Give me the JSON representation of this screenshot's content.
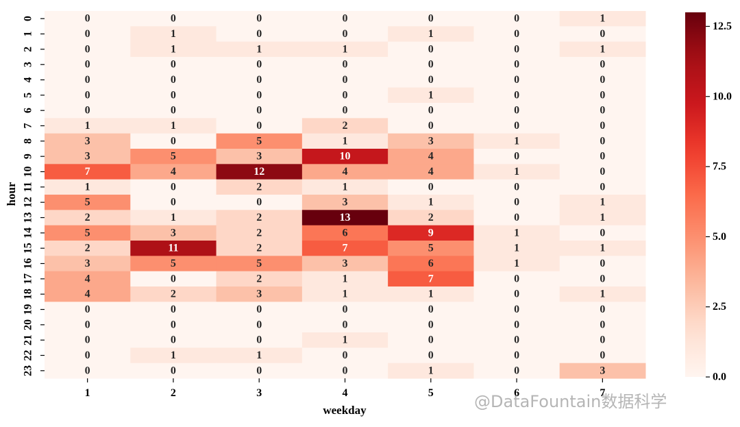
{
  "chart_data": {
    "type": "heatmap",
    "xlabel": "weekday",
    "ylabel": "hour",
    "x_categories": [
      "1",
      "2",
      "3",
      "4",
      "5",
      "6",
      "7"
    ],
    "y_categories": [
      "0",
      "1",
      "2",
      "3",
      "4",
      "5",
      "6",
      "7",
      "8",
      "9",
      "10",
      "11",
      "12",
      "13",
      "14",
      "15",
      "16",
      "17",
      "18",
      "19",
      "20",
      "21",
      "22",
      "23"
    ],
    "values": [
      [
        0,
        0,
        0,
        0,
        0,
        0,
        1
      ],
      [
        0,
        1,
        0,
        0,
        1,
        0,
        0
      ],
      [
        0,
        1,
        1,
        1,
        0,
        0,
        1
      ],
      [
        0,
        0,
        0,
        0,
        0,
        0,
        0
      ],
      [
        0,
        0,
        0,
        0,
        0,
        0,
        0
      ],
      [
        0,
        0,
        0,
        0,
        1,
        0,
        0
      ],
      [
        0,
        0,
        0,
        0,
        0,
        0,
        0
      ],
      [
        1,
        1,
        0,
        2,
        0,
        0,
        0
      ],
      [
        3,
        0,
        5,
        1,
        3,
        1,
        0
      ],
      [
        3,
        5,
        3,
        10,
        4,
        0,
        0
      ],
      [
        7,
        4,
        12,
        4,
        4,
        1,
        0
      ],
      [
        1,
        0,
        2,
        1,
        0,
        0,
        0
      ],
      [
        5,
        0,
        0,
        3,
        1,
        0,
        1
      ],
      [
        2,
        1,
        2,
        13,
        2,
        0,
        1
      ],
      [
        5,
        3,
        2,
        6,
        9,
        1,
        0
      ],
      [
        2,
        11,
        2,
        7,
        5,
        1,
        1
      ],
      [
        3,
        5,
        5,
        3,
        6,
        1,
        0
      ],
      [
        4,
        0,
        2,
        1,
        7,
        0,
        0
      ],
      [
        4,
        2,
        3,
        1,
        1,
        0,
        1
      ],
      [
        0,
        0,
        0,
        0,
        0,
        0,
        0
      ],
      [
        0,
        0,
        0,
        0,
        0,
        0,
        0
      ],
      [
        0,
        0,
        0,
        1,
        0,
        0,
        0
      ],
      [
        0,
        1,
        1,
        0,
        0,
        0,
        0
      ],
      [
        0,
        0,
        0,
        0,
        1,
        0,
        3
      ]
    ],
    "colorscale": "Reds",
    "vmin": 0,
    "vmax": 13,
    "colorbar_ticks": [
      "0.0",
      "2.5",
      "5.0",
      "7.5",
      "10.0",
      "12.5"
    ],
    "colorbar_tick_values": [
      0,
      2.5,
      5.0,
      7.5,
      10.0,
      12.5
    ]
  },
  "watermark": "@DataFountain数据科学"
}
